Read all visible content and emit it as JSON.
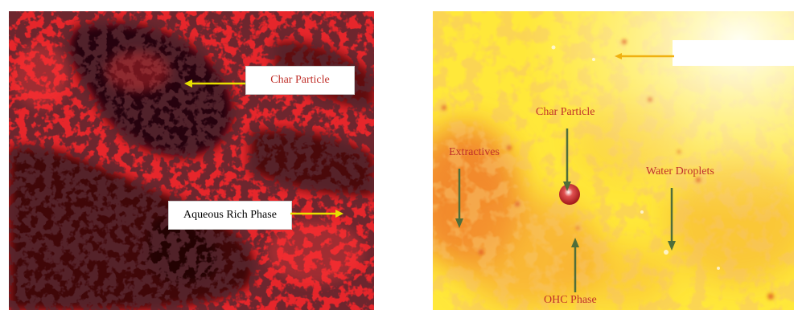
{
  "left_image": {
    "labels": {
      "char_particle": "Char Particle",
      "aqueous_rich_phase": "Aqueous Rich Phase"
    },
    "colors": {
      "background": "#e6262b",
      "dark": "#1a0507",
      "label_char_text": "#c0302a",
      "label_aqueous_text": "#000000",
      "arrow": "#e8e000"
    }
  },
  "right_image": {
    "labels": {
      "char_particle": "Char Particle",
      "extractives": "Extractives",
      "water_droplets": "Water Droplets",
      "ohc_phase": "OHC Phase"
    },
    "colors": {
      "label_text": "#c0302a",
      "arrow": "#4f6e3a",
      "bright": "#fffde0",
      "yellow": "#ffe83a",
      "orange": "#f08a2a"
    }
  }
}
